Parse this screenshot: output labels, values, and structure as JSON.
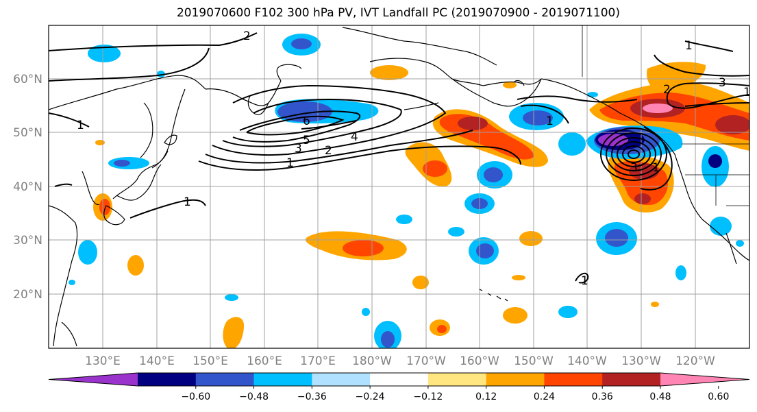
{
  "title": "2019070600 F102 300 hPa PV, IVT Landfall PC (2019070900 - 2019071100)",
  "lat_labels": [
    "60°N",
    "50°N",
    "40°N",
    "30°N",
    "20°N"
  ],
  "lon_labels": [
    "130°E",
    "140°E",
    "150°E",
    "160°E",
    "170°E",
    "180°W",
    "170°W",
    "160°W",
    "150°W",
    "140°W",
    "130°W",
    "120°W"
  ],
  "colorbar": {
    "ticks": [
      "−0.60",
      "−0.48",
      "−0.36",
      "−0.24",
      "−0.12",
      "0.12",
      "0.24",
      "0.36",
      "0.48",
      "0.60"
    ],
    "colors": [
      "#9933cc",
      "#000080",
      "#3355cc",
      "#00bfff",
      "#b0e2ff",
      "#ffffff",
      "#ffe680",
      "#ffa500",
      "#ff4500",
      "#b22222",
      "#ff85b4"
    ]
  },
  "contour_labels": [
    "2",
    "1",
    "1",
    "6",
    "5",
    "4",
    "3",
    "2",
    "1",
    "1",
    "1",
    "3",
    "2",
    "1",
    "3",
    "1",
    "1"
  ]
}
